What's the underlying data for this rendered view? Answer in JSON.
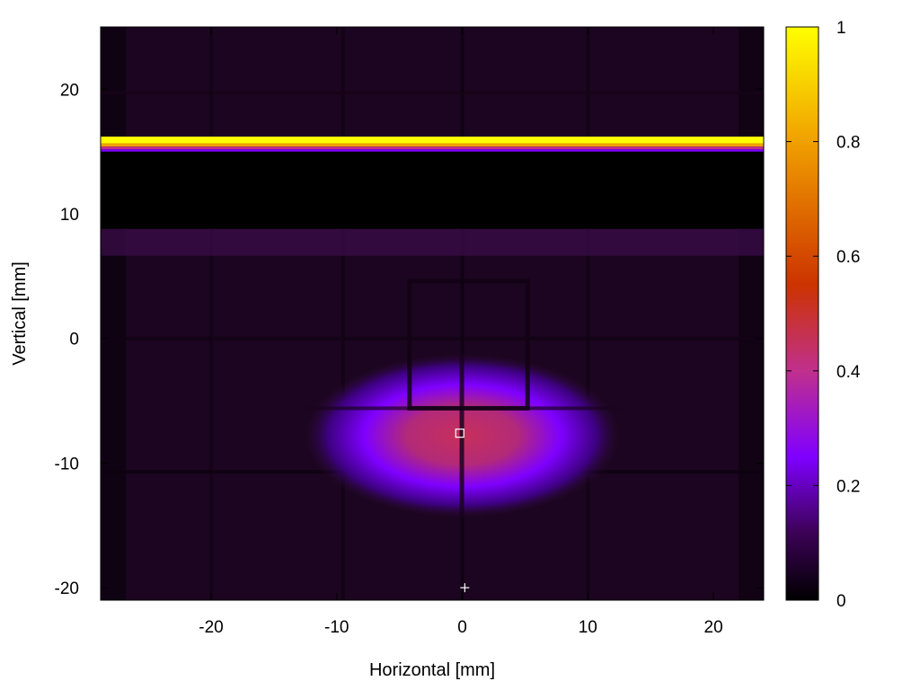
{
  "chart_data": {
    "type": "heatmap",
    "title": "",
    "xlabel": "Horizontal [mm]",
    "ylabel": "Vertical [mm]",
    "xlim": [
      -28.8,
      24.0
    ],
    "ylim": [
      -21.0,
      25.0
    ],
    "x_ticks": [
      -20,
      -10,
      0,
      10,
      20
    ],
    "x_tick_labels": [
      "-20",
      "-10",
      "0",
      "10",
      "20"
    ],
    "y_ticks": [
      -20,
      -10,
      0,
      10,
      20
    ],
    "y_tick_labels": [
      "-20",
      "-10",
      "0",
      "10",
      "20"
    ],
    "grid": false,
    "colorbar": {
      "range": [
        0,
        1
      ],
      "ticks": [
        0,
        0.2,
        0.4,
        0.6,
        0.8,
        1
      ],
      "tick_labels": [
        "0",
        "0.2",
        "0.4",
        "0.6",
        "0.8",
        "1"
      ],
      "colors": [
        "#000000",
        "#3d0258",
        "#7f00ff",
        "#c0308c",
        "#cc3300",
        "#f0a000",
        "#ffff00"
      ]
    },
    "background_level": 0.06,
    "features": {
      "hot_strip": {
        "y_range": [
          15.0,
          16.2
        ],
        "level": 1.0
      },
      "dark_band": {
        "y_range": [
          8.8,
          15.0
        ],
        "level": 0.0
      },
      "beam_spot": {
        "center": [
          0.0,
          -7.8
        ],
        "sigma_x": 4.2,
        "sigma_y": 2.2,
        "peak": 0.5
      }
    },
    "markers": [
      {
        "type": "square",
        "x": -0.2,
        "y": -7.6
      },
      {
        "type": "plus",
        "x": 0.2,
        "y": -20.0
      }
    ]
  }
}
